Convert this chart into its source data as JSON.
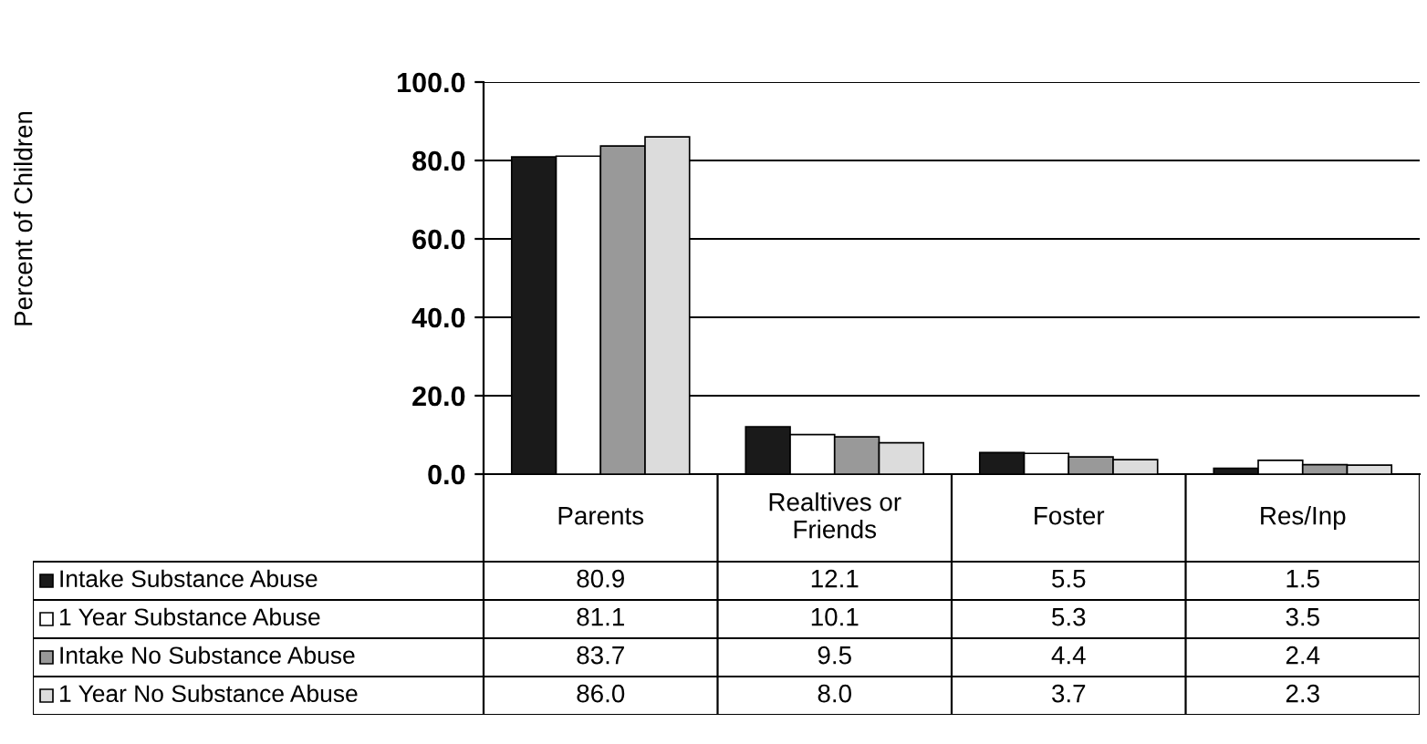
{
  "chart_data": {
    "type": "bar",
    "annotations": [
      "Percent of Children"
    ],
    "categories": [
      "Parents",
      "Realtives or\nFriends",
      "Foster",
      "Res/Inp"
    ],
    "series": [
      {
        "name": "Intake Substance Abuse",
        "color": "#1a1a1a",
        "values": [
          80.9,
          12.1,
          5.5,
          1.5
        ],
        "value_labels": [
          "80.9",
          "12.1",
          "5.5",
          "1.5"
        ]
      },
      {
        "name": "1 Year Substance Abuse",
        "color": "#ffffff",
        "values": [
          81.1,
          10.1,
          5.3,
          3.5
        ],
        "value_labels": [
          "81.1",
          "10.1",
          "5.3",
          "3.5"
        ]
      },
      {
        "name": "Intake No Substance Abuse",
        "color": "#999999",
        "values": [
          83.7,
          9.5,
          4.4,
          2.4
        ],
        "value_labels": [
          "83.7",
          "9.5",
          "4.4",
          "2.4"
        ]
      },
      {
        "name": "1 Year No Substance Abuse",
        "color": "#dcdcdc",
        "values": [
          86.0,
          8.0,
          3.7,
          2.3
        ],
        "value_labels": [
          "86.0",
          "8.0",
          "3.7",
          "2.3"
        ]
      }
    ],
    "ylim": [
      0,
      100
    ],
    "yticks": [
      {
        "value": 0,
        "label": "0.0"
      },
      {
        "value": 20,
        "label": "20.0"
      },
      {
        "value": 40,
        "label": "40.0"
      },
      {
        "value": 60,
        "label": "60.0"
      },
      {
        "value": 80,
        "label": "80.0"
      },
      {
        "value": 100,
        "label": "100.0"
      }
    ],
    "grid": "y",
    "legend": "bottom"
  }
}
